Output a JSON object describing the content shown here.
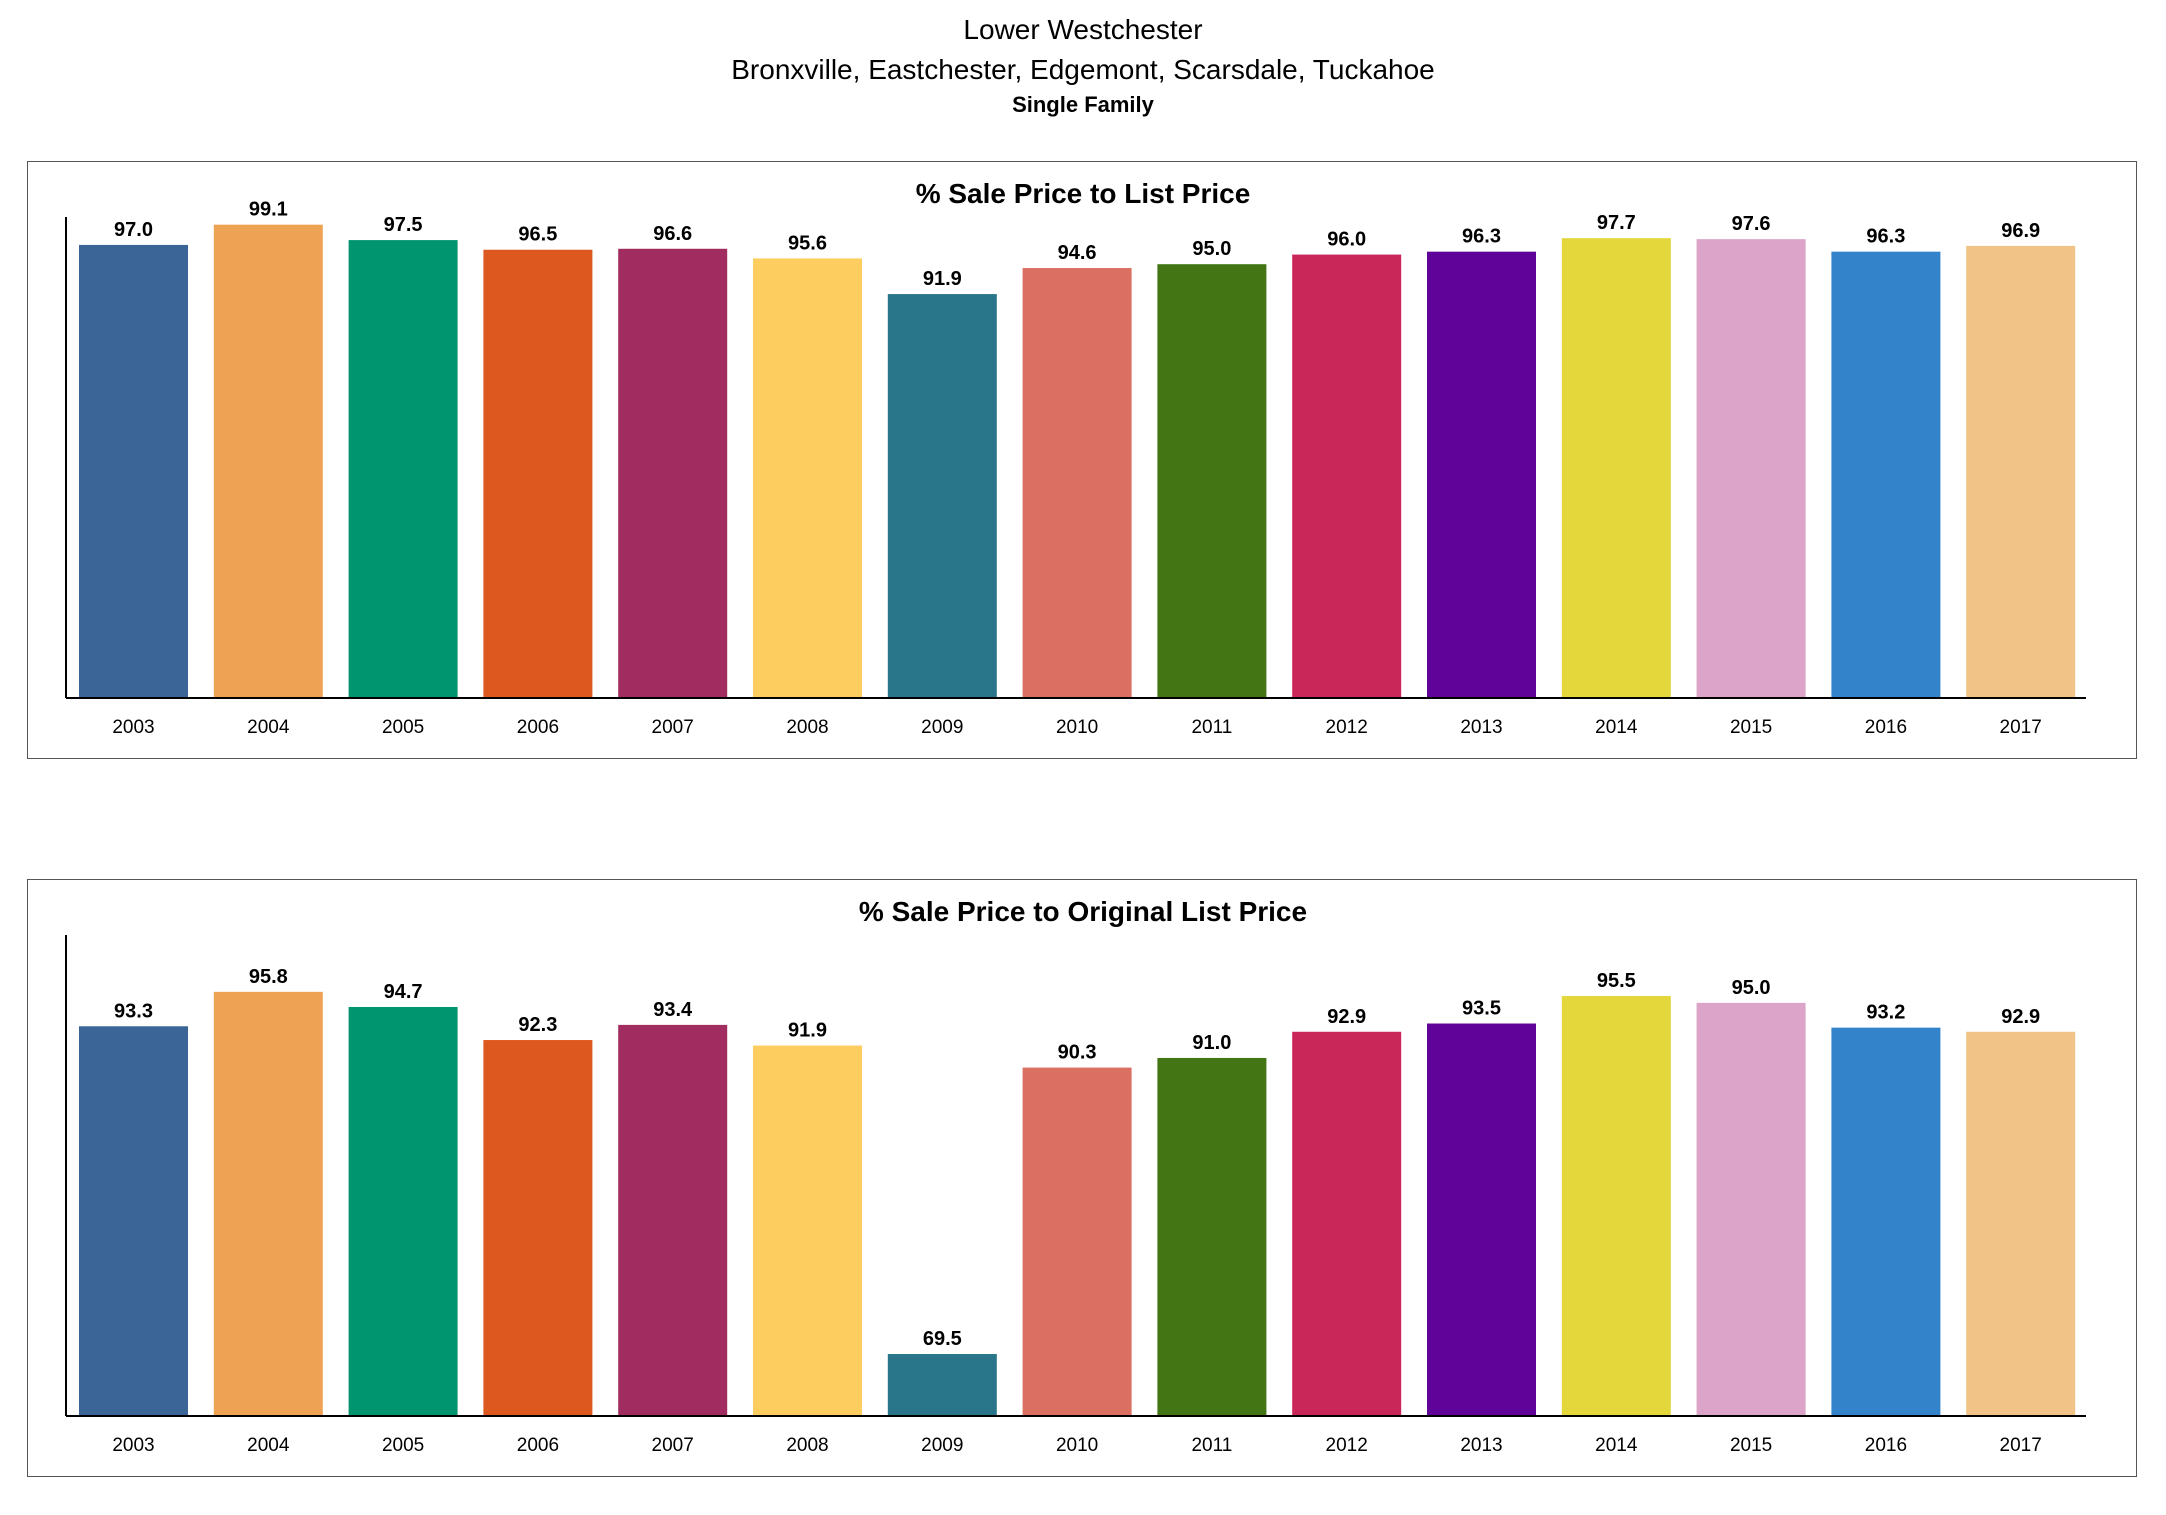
{
  "header": {
    "title": "Lower Westchester",
    "subtitle": "Bronxville, Eastchester, Edgemont, Scarsdale, Tuckahoe",
    "property_type": "Single Family"
  },
  "chart_data": [
    {
      "type": "bar",
      "title": "% Sale Price to List Price",
      "xlabel": "",
      "ylabel": "",
      "ylim": [
        50,
        100
      ],
      "grid": false,
      "categories": [
        "2003",
        "2004",
        "2005",
        "2006",
        "2007",
        "2008",
        "2009",
        "2010",
        "2011",
        "2012",
        "2013",
        "2014",
        "2015",
        "2016",
        "2017"
      ],
      "values": [
        97.0,
        99.1,
        97.5,
        96.5,
        96.6,
        95.6,
        91.9,
        94.6,
        95.0,
        96.0,
        96.3,
        97.7,
        97.6,
        96.3,
        96.9
      ],
      "labels": [
        "97.0",
        "99.1",
        "97.5",
        "96.5",
        "96.6",
        "95.6",
        "91.9",
        "94.6",
        "95.0",
        "96.0",
        "96.3",
        "97.7",
        "97.6",
        "96.3",
        "96.9"
      ]
    },
    {
      "type": "bar",
      "title": "% Sale Price to Original List Price",
      "xlabel": "",
      "ylabel": "",
      "ylim": [
        65,
        100
      ],
      "grid": false,
      "categories": [
        "2003",
        "2004",
        "2005",
        "2006",
        "2007",
        "2008",
        "2009",
        "2010",
        "2011",
        "2012",
        "2013",
        "2014",
        "2015",
        "2016",
        "2017"
      ],
      "values": [
        93.3,
        95.8,
        94.7,
        92.3,
        93.4,
        91.9,
        69.5,
        90.3,
        91.0,
        92.9,
        93.5,
        95.5,
        95.0,
        93.2,
        92.9
      ],
      "labels": [
        "93.3",
        "95.8",
        "94.7",
        "92.3",
        "93.4",
        "91.9",
        "69.5",
        "90.3",
        "91.0",
        "92.9",
        "93.5",
        "95.5",
        "95.0",
        "93.2",
        "92.9"
      ]
    }
  ],
  "colors": [
    "#3a6596",
    "#eea354",
    "#00946f",
    "#dd581f",
    "#a02c60",
    "#fdcd60",
    "#297589",
    "#da6f62",
    "#437515",
    "#c9275a",
    "#600499",
    "#e3d73c",
    "#dba4c8",
    "#3383cb",
    "#f1c386"
  ]
}
